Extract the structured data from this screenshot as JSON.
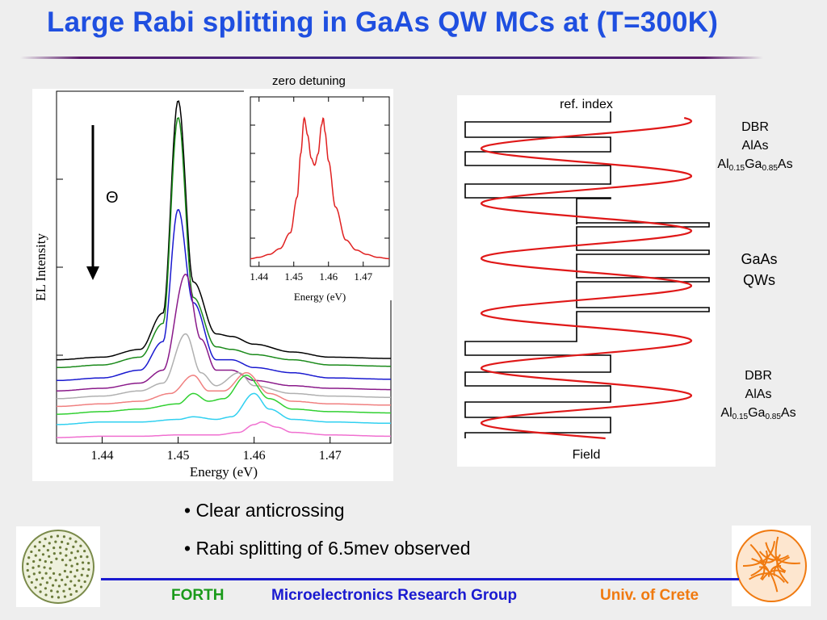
{
  "title": "Large Rabi splitting in GaAs QW MCs at (T=300K)",
  "main_plot": {
    "xlabel": "Energy (eV)",
    "ylabel": "EL Intensity",
    "xticks": [
      "1.44",
      "1.45",
      "1.46",
      "1.47"
    ],
    "angle_symbol": "Θ"
  },
  "inset": {
    "title": "zero detuning",
    "xlabel": "Energy (eV)",
    "xticks": [
      "1.44",
      "1.45",
      "1.46",
      "1.47"
    ]
  },
  "structure": {
    "top_label": "ref. index",
    "bottom_label": "Field",
    "dbr_top": {
      "line1": "DBR",
      "line2": "AlAs"
    },
    "qw": {
      "line1": "GaAs",
      "line2": "QWs"
    },
    "dbr_bottom": {
      "line1": "DBR",
      "line2": "AlAs"
    },
    "alloy": {
      "al": "Al",
      "al_sub": "0.15",
      "ga": "Ga",
      "ga_sub": "0.85",
      "as": "As"
    }
  },
  "bullets": [
    "• Clear anticrossing",
    "• Rabi splitting of 6.5mev observed"
  ],
  "footer": {
    "left": "FORTH",
    "center": "Microelectronics Research Group",
    "right": "Univ. of Crete",
    "left_color": "#1a9a1a",
    "center_color": "#1a1ad0",
    "right_color": "#f07a10"
  },
  "chart_data": [
    {
      "type": "line",
      "xlabel": "Energy (eV)",
      "ylabel": "EL Intensity",
      "xlim": [
        1.434,
        1.478
      ],
      "series": [
        {
          "color": "#000000",
          "offset": 0.3,
          "x": [
            1.434,
            1.44,
            1.445,
            1.448,
            1.45,
            1.452,
            1.455,
            1.457,
            1.46,
            1.465,
            1.47,
            1.478
          ],
          "y": [
            0.0,
            0.01,
            0.04,
            0.18,
            1.0,
            0.3,
            0.1,
            0.09,
            0.06,
            0.03,
            0.01,
            0.005
          ]
        },
        {
          "color": "#1a8a1a",
          "offset": 0.27,
          "x": [
            1.434,
            1.44,
            1.445,
            1.448,
            1.45,
            1.452,
            1.455,
            1.457,
            1.46,
            1.465,
            1.47,
            1.478
          ],
          "y": [
            0.0,
            0.01,
            0.04,
            0.17,
            0.965,
            0.27,
            0.08,
            0.07,
            0.05,
            0.03,
            0.01,
            0.005
          ]
        },
        {
          "color": "#1a1ad0",
          "offset": 0.22,
          "x": [
            1.434,
            1.44,
            1.445,
            1.448,
            1.45,
            1.452,
            1.455,
            1.457,
            1.46,
            1.465,
            1.47,
            1.478
          ],
          "y": [
            0.0,
            0.01,
            0.04,
            0.15,
            0.66,
            0.3,
            0.08,
            0.08,
            0.05,
            0.03,
            0.01,
            0.005
          ]
        },
        {
          "color": "#8a1a8a",
          "offset": 0.18,
          "x": [
            1.434,
            1.44,
            1.445,
            1.448,
            1.451,
            1.453,
            1.455,
            1.457,
            1.46,
            1.465,
            1.47,
            1.478
          ],
          "y": [
            0.0,
            0.01,
            0.03,
            0.08,
            0.45,
            0.2,
            0.08,
            0.08,
            0.04,
            0.02,
            0.01,
            0.005
          ]
        },
        {
          "color": "#b0b0b0",
          "offset": 0.15,
          "x": [
            1.434,
            1.44,
            1.445,
            1.448,
            1.451,
            1.453,
            1.455,
            1.458,
            1.46,
            1.465,
            1.47,
            1.478
          ],
          "y": [
            0.0,
            0.01,
            0.03,
            0.06,
            0.25,
            0.1,
            0.05,
            0.1,
            0.05,
            0.02,
            0.01,
            0.005
          ]
        },
        {
          "color": "#f08080",
          "offset": 0.12,
          "x": [
            1.434,
            1.44,
            1.445,
            1.449,
            1.452,
            1.454,
            1.456,
            1.459,
            1.462,
            1.465,
            1.47,
            1.478
          ],
          "y": [
            0.0,
            0.01,
            0.02,
            0.05,
            0.12,
            0.06,
            0.06,
            0.13,
            0.05,
            0.02,
            0.01,
            0.005
          ]
        },
        {
          "color": "#30d030",
          "offset": 0.09,
          "x": [
            1.434,
            1.44,
            1.445,
            1.45,
            1.452,
            1.454,
            1.456,
            1.459,
            1.462,
            1.465,
            1.47,
            1.478
          ],
          "y": [
            0.0,
            0.01,
            0.02,
            0.04,
            0.08,
            0.05,
            0.06,
            0.15,
            0.06,
            0.02,
            0.01,
            0.005
          ]
        },
        {
          "color": "#30d0f0",
          "offset": 0.05,
          "x": [
            1.434,
            1.44,
            1.445,
            1.45,
            1.452,
            1.455,
            1.457,
            1.46,
            1.462,
            1.465,
            1.47,
            1.478
          ],
          "y": [
            0.0,
            0.01,
            0.01,
            0.02,
            0.03,
            0.02,
            0.03,
            0.12,
            0.06,
            0.02,
            0.01,
            0.005
          ]
        },
        {
          "color": "#f070d0",
          "offset": 0.0,
          "x": [
            1.434,
            1.44,
            1.445,
            1.45,
            1.455,
            1.458,
            1.46,
            1.461,
            1.463,
            1.465,
            1.47,
            1.478
          ],
          "y": [
            0.0,
            0.005,
            0.005,
            0.01,
            0.01,
            0.02,
            0.05,
            0.06,
            0.04,
            0.02,
            0.01,
            0.005
          ]
        }
      ]
    },
    {
      "type": "line",
      "title": "zero detuning",
      "xlabel": "Energy (eV)",
      "xlim": [
        1.4375,
        1.4775
      ],
      "series": [
        {
          "color": "#e02020",
          "x": [
            1.4375,
            1.44,
            1.443,
            1.446,
            1.449,
            1.451,
            1.452,
            1.453,
            1.454,
            1.455,
            1.456,
            1.457,
            1.458,
            1.4585,
            1.459,
            1.46,
            1.462,
            1.465,
            1.468,
            1.471,
            1.474,
            1.4775
          ],
          "y": [
            0.02,
            0.03,
            0.05,
            0.09,
            0.2,
            0.45,
            0.75,
            1.0,
            0.88,
            0.72,
            0.67,
            0.75,
            0.95,
            1.0,
            0.9,
            0.7,
            0.38,
            0.15,
            0.08,
            0.05,
            0.03,
            0.02
          ]
        }
      ]
    }
  ]
}
